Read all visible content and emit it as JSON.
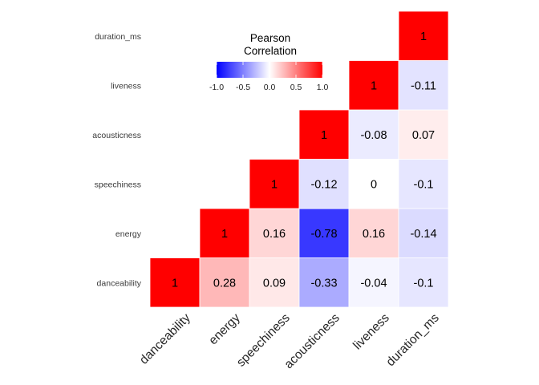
{
  "chart_data": {
    "type": "heatmap",
    "variables": [
      "danceability",
      "energy",
      "speechiness",
      "acousticness",
      "liveness",
      "duration_ms"
    ],
    "x_tick_labels": [
      "danceability",
      "energy",
      "speechiness",
      "acousticness",
      "liveness",
      "duration_ms"
    ],
    "y_tick_labels": [
      "danceability",
      "energy",
      "speechiness",
      "acousticness",
      "liveness",
      "duration_ms"
    ],
    "matrix_layout": "upper-triangle",
    "cells": [
      {
        "x": "danceability",
        "y": "danceability",
        "value": 1,
        "label": "1"
      },
      {
        "x": "energy",
        "y": "danceability",
        "value": 0.28,
        "label": "0.28"
      },
      {
        "x": "speechiness",
        "y": "danceability",
        "value": 0.09,
        "label": "0.09"
      },
      {
        "x": "acousticness",
        "y": "danceability",
        "value": -0.33,
        "label": "-0.33"
      },
      {
        "x": "liveness",
        "y": "danceability",
        "value": -0.04,
        "label": "-0.04"
      },
      {
        "x": "duration_ms",
        "y": "danceability",
        "value": -0.1,
        "label": "-0.1"
      },
      {
        "x": "energy",
        "y": "energy",
        "value": 1,
        "label": "1"
      },
      {
        "x": "speechiness",
        "y": "energy",
        "value": 0.16,
        "label": "0.16"
      },
      {
        "x": "acousticness",
        "y": "energy",
        "value": -0.78,
        "label": "-0.78"
      },
      {
        "x": "liveness",
        "y": "energy",
        "value": 0.16,
        "label": "0.16"
      },
      {
        "x": "duration_ms",
        "y": "energy",
        "value": -0.14,
        "label": "-0.14"
      },
      {
        "x": "speechiness",
        "y": "speechiness",
        "value": 1,
        "label": "1"
      },
      {
        "x": "acousticness",
        "y": "speechiness",
        "value": -0.12,
        "label": "-0.12"
      },
      {
        "x": "liveness",
        "y": "speechiness",
        "value": 0,
        "label": "0"
      },
      {
        "x": "duration_ms",
        "y": "speechiness",
        "value": -0.1,
        "label": "-0.1"
      },
      {
        "x": "acousticness",
        "y": "acousticness",
        "value": 1,
        "label": "1"
      },
      {
        "x": "liveness",
        "y": "acousticness",
        "value": -0.08,
        "label": "-0.08"
      },
      {
        "x": "duration_ms",
        "y": "acousticness",
        "value": 0.07,
        "label": "0.07"
      },
      {
        "x": "liveness",
        "y": "liveness",
        "value": 1,
        "label": "1"
      },
      {
        "x": "duration_ms",
        "y": "liveness",
        "value": -0.11,
        "label": "-0.11"
      },
      {
        "x": "duration_ms",
        "y": "duration_ms",
        "value": 1,
        "label": "1"
      }
    ],
    "legend": {
      "title_lines": [
        "Pearson",
        "Correlation"
      ],
      "ticks": [
        {
          "value": -1.0,
          "label": "-1.0"
        },
        {
          "value": -0.5,
          "label": "-0.5"
        },
        {
          "value": 0.0,
          "label": "0.0"
        },
        {
          "value": 0.5,
          "label": "0.5"
        },
        {
          "value": 1.0,
          "label": "1.0"
        }
      ],
      "range": [
        -1,
        1
      ],
      "placement": "top-center"
    },
    "color_scale": {
      "low": "#0000ff",
      "mid": "#ffffff",
      "high": "#ff0000"
    },
    "grid": false
  }
}
